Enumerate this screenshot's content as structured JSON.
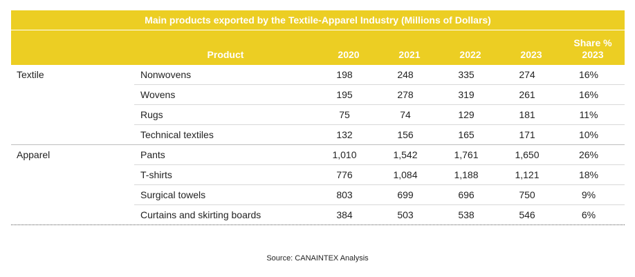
{
  "chart_data": {
    "type": "table",
    "title": "Main products exported by the Textile-Apparel Industry (Millions of Dollars)",
    "columns": {
      "product": "Product",
      "y2020": "2020",
      "y2021": "2021",
      "y2022": "2022",
      "y2023": "2023",
      "share_line1": "Share %",
      "share_line2": "2023"
    },
    "rows": [
      {
        "category": "Textile",
        "product": "Nonwovens",
        "v2020": "198",
        "v2021": "248",
        "v2022": "335",
        "v2023": "274",
        "share": "16%"
      },
      {
        "category": "",
        "product": "Wovens",
        "v2020": "195",
        "v2021": "278",
        "v2022": "319",
        "v2023": "261",
        "share": "16%"
      },
      {
        "category": "",
        "product": "Rugs",
        "v2020": "75",
        "v2021": "74",
        "v2022": "129",
        "v2023": "181",
        "share": "11%"
      },
      {
        "category": "",
        "product": "Technical textiles",
        "v2020": "132",
        "v2021": "156",
        "v2022": "165",
        "v2023": "171",
        "share": "10%"
      },
      {
        "category": "Apparel",
        "product": "Pants",
        "v2020": "1,010",
        "v2021": "1,542",
        "v2022": "1,761",
        "v2023": "1,650",
        "share": "26%"
      },
      {
        "category": "",
        "product": "T-shirts",
        "v2020": "776",
        "v2021": "1,084",
        "v2022": "1,188",
        "v2023": "1,121",
        "share": "18%"
      },
      {
        "category": "",
        "product": "Surgical towels",
        "v2020": "803",
        "v2021": "699",
        "v2022": "696",
        "v2023": "750",
        "share": "9%"
      },
      {
        "category": "",
        "product": "Curtains and skirting boards",
        "v2020": "384",
        "v2021": "503",
        "v2022": "538",
        "v2023": "546",
        "share": "6%"
      }
    ],
    "source": "Source: CANAINTEX Analysis"
  },
  "colors": {
    "header_bg": "#ecce23",
    "header_text": "#ffffff"
  }
}
